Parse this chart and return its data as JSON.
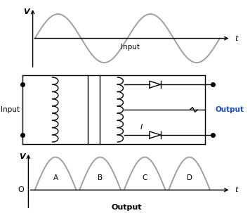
{
  "bg_color": "#ffffff",
  "line_color": "#000000",
  "sine_color": "#a0a0a0",
  "text_color_blue": "#1a4fbd",
  "text_color_black": "#000000",
  "V_label": "V",
  "t_label": "t",
  "O_label": "O",
  "input_label": "Input",
  "output_label": "Output",
  "I_label": "I",
  "A_label": "A",
  "B_label": "B",
  "C_label": "C",
  "D_label": "D",
  "dot_color": "#000000",
  "n_coil_loops": 9,
  "diode_size": 0.22
}
